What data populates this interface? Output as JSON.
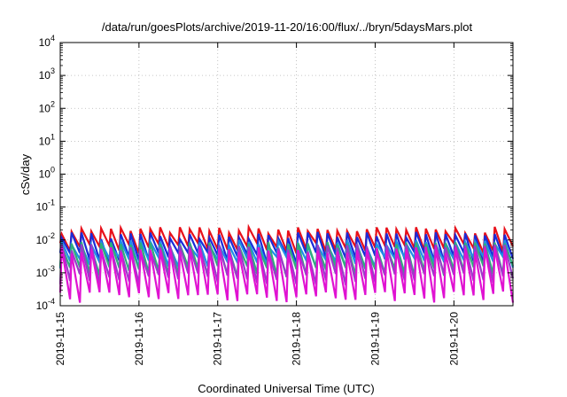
{
  "chart_data": {
    "type": "line",
    "title": "/data/run/goesPlots/archive/2019-11-20/16:00/flux/../bryn/5daysMars.plot",
    "xlabel": "Coordinated Universal Time (UTC)",
    "ylabel": "cSv/day",
    "x_ticks": [
      "2019-11-15",
      "2019-11-16",
      "2019-11-17",
      "2019-11-18",
      "2019-11-19",
      "2019-11-20"
    ],
    "xlim": [
      "2019-11-15T00:00",
      "2019-11-20T18:00"
    ],
    "y_scale": "log",
    "ylim": [
      0.0001,
      10000
    ],
    "y_ticks": [
      {
        "value": 0.0001,
        "base": "10",
        "exp": "-4"
      },
      {
        "value": 0.001,
        "base": "10",
        "exp": "-3"
      },
      {
        "value": 0.01,
        "base": "10",
        "exp": "-2"
      },
      {
        "value": 0.1,
        "base": "10",
        "exp": "-1"
      },
      {
        "value": 1,
        "base": "10",
        "exp": "0"
      },
      {
        "value": 10,
        "base": "10",
        "exp": "1"
      },
      {
        "value": 100,
        "base": "10",
        "exp": "2"
      },
      {
        "value": 1000,
        "base": "10",
        "exp": "3"
      },
      {
        "value": 10000,
        "base": "10",
        "exp": "4"
      }
    ],
    "grid": true,
    "sawtooth_period_hours": 3,
    "series": [
      {
        "color": "#e8101a",
        "peak": 0.02,
        "trough": 0.006
      },
      {
        "color": "#1a2bd8",
        "peak": 0.014,
        "trough": 0.003
      },
      {
        "color": "#1f8fe8",
        "peak": 0.008,
        "trough": 0.0022
      },
      {
        "color": "#2fae7a",
        "peak": 0.007,
        "trough": 0.0012
      },
      {
        "color": "#9a3cc8",
        "peak": 0.006,
        "trough": 0.0007
      },
      {
        "color": "#e012d2",
        "peak": 0.005,
        "trough": 0.0002
      }
    ]
  }
}
